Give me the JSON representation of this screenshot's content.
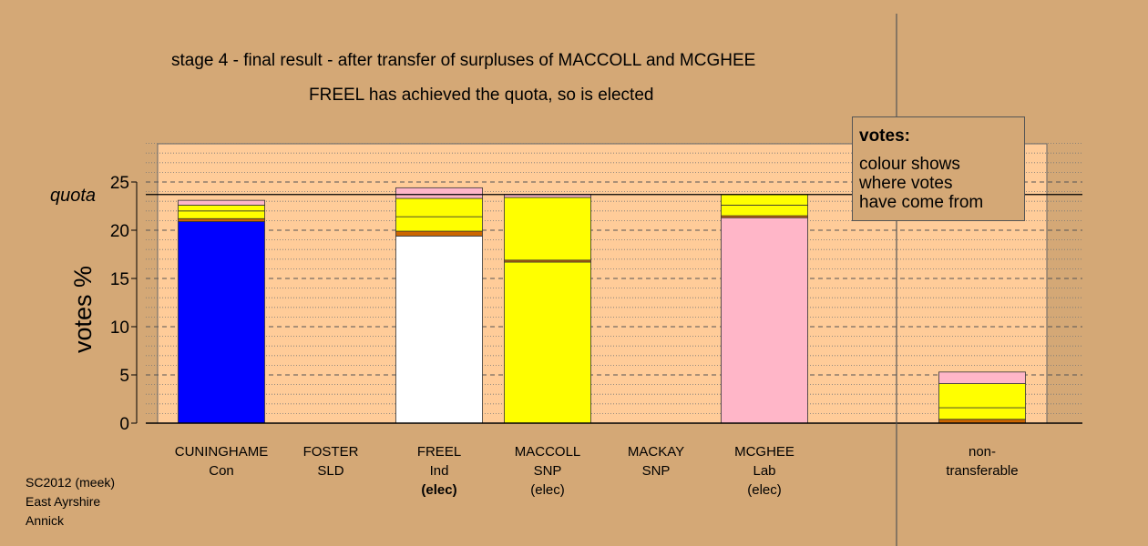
{
  "titles": {
    "line1": "stage 4 - final result - after transfer of surpluses of MACCOLL and MCGHEE",
    "line2": "FREEL has achieved the quota, so is elected"
  },
  "legend": {
    "title": "votes:",
    "text": [
      "colour shows",
      "where votes",
      "have come from"
    ]
  },
  "footer": [
    "SC2012 (meek)",
    "East Ayrshire",
    "Annick"
  ],
  "chart_data": {
    "type": "bar",
    "stacked": true,
    "ylabel": "votes %",
    "ylim": [
      0,
      29
    ],
    "yticks": [
      0,
      5,
      10,
      15,
      20,
      25
    ],
    "quota": 23.7,
    "quota_label": "quota",
    "candidates": [
      {
        "name": "CUNINGHAME",
        "party": "Con",
        "status": "",
        "segments": [
          {
            "color": "#0000ff",
            "value": 20.9
          },
          {
            "color": "#cc6600",
            "value": 0.3
          },
          {
            "color": "#ffff00",
            "value": 0.8
          },
          {
            "color": "#ffff00",
            "value": 0.6
          },
          {
            "color": "#ffb6c8",
            "value": 0.5
          }
        ]
      },
      {
        "name": "FOSTER",
        "party": "SLD",
        "status": "",
        "segments": []
      },
      {
        "name": "FREEL",
        "party": "Ind",
        "status": "(elec)",
        "status_bold": true,
        "segments": [
          {
            "color": "#ffffff",
            "value": 19.4
          },
          {
            "color": "#cc6600",
            "value": 0.5
          },
          {
            "color": "#ffff00",
            "value": 1.5
          },
          {
            "color": "#ffff00",
            "value": 1.9
          },
          {
            "color": "#ffb6c8",
            "value": 1.1
          }
        ]
      },
      {
        "name": "MACCOLL",
        "party": "SNP",
        "status": "(elec)",
        "segments": [
          {
            "color": "#ffff00",
            "value": 16.7
          },
          {
            "color": "#cc6600",
            "value": 0.2
          },
          {
            "color": "#ffff00",
            "value": 6.5
          },
          {
            "color": "#ffb6c8",
            "value": 0.3
          }
        ]
      },
      {
        "name": "MACKAY",
        "party": "SNP",
        "status": "",
        "segments": []
      },
      {
        "name": "MCGHEE",
        "party": "Lab",
        "status": "(elec)",
        "segments": [
          {
            "color": "#ffb6c8",
            "value": 21.3
          },
          {
            "color": "#cc6600",
            "value": 0.2
          },
          {
            "color": "#ffff00",
            "value": 1.1
          },
          {
            "color": "#ffff00",
            "value": 1.1
          }
        ]
      }
    ],
    "nontransferable": {
      "label_line1": "non-",
      "label_line2": "transferable",
      "segments": [
        {
          "color": "#cc6600",
          "value": 0.4
        },
        {
          "color": "#ffff00",
          "value": 1.2
        },
        {
          "color": "#ffff00",
          "value": 2.5
        },
        {
          "color": "#ffb6c8",
          "value": 1.2
        }
      ]
    }
  }
}
